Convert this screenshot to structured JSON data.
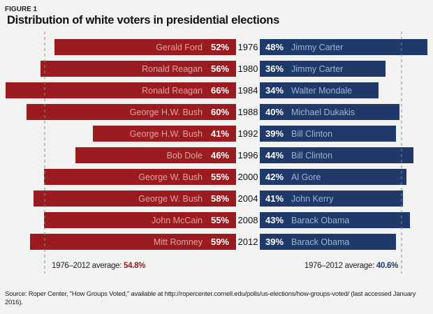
{
  "figure_label": "FIGURE 1",
  "chart_data": {
    "type": "bar",
    "title": "Distribution of white voters in presidential elections",
    "categories": [
      "1976",
      "1980",
      "1984",
      "1988",
      "1992",
      "1996",
      "2000",
      "2004",
      "2008",
      "2012"
    ],
    "series": [
      {
        "party": "Republican",
        "color": "#9b1c20",
        "names": [
          "Gerald Ford",
          "Ronald Reagan",
          "Ronald Reagan",
          "George H.W. Bush",
          "George H.W. Bush",
          "Bob Dole",
          "George W. Bush",
          "George W. Bush",
          "John McCain",
          "Mitt Romney"
        ],
        "values": [
          52,
          56,
          66,
          60,
          41,
          46,
          55,
          58,
          55,
          59
        ]
      },
      {
        "party": "Democratic",
        "color": "#1f3a68",
        "names": [
          "Jimmy Carter",
          "Jimmy Carter",
          "Walter Mondale",
          "Michael Dukakis",
          "Bill Clinton",
          "Bill Clinton",
          "Al Gore",
          "John Kerry",
          "Barack Obama",
          "Barack Obama"
        ],
        "values": [
          48,
          36,
          34,
          40,
          39,
          44,
          42,
          41,
          43,
          39
        ]
      }
    ],
    "averages": {
      "label": "1976–2012 average:",
      "republican": "54.8%",
      "democratic": "40.6%",
      "republican_value": 54.8,
      "democratic_value": 40.6
    }
  },
  "source": "Source: Roper Center, \"How Groups Voted,\" available at http://ropercenter.cornell.edu/polls/us-elections/how-groups-voted/ (last accessed January 2016)."
}
